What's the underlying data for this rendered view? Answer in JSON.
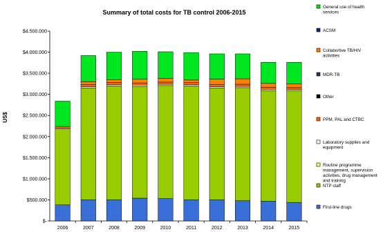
{
  "chart_data": {
    "type": "bar",
    "stacked": true,
    "title": "Summary of total costs for TB control 2006-2015",
    "ylabel": "US$",
    "xlabel": "",
    "ylim": [
      0,
      4500000
    ],
    "yticks": [
      0,
      500000,
      1000000,
      1500000,
      2000000,
      2500000,
      3000000,
      3500000,
      4000000,
      4500000
    ],
    "ytick_labels": [
      "$-",
      "$500.000",
      "$1.000.000",
      "$1.500.000",
      "$2.000.000",
      "$2.500.000",
      "$3.000.000",
      "$3.500.000",
      "$4.000.000",
      "$4.500.000"
    ],
    "categories": [
      "2006",
      "2007",
      "2008",
      "2009",
      "2010",
      "2011",
      "2012",
      "2013",
      "2014",
      "2015"
    ],
    "grid": false,
    "legend_position": "right",
    "series": [
      {
        "name": "First-line drugs",
        "color": "#3a6fd8",
        "values": [
          380000,
          500000,
          500000,
          540000,
          530000,
          500000,
          500000,
          480000,
          470000,
          440000
        ]
      },
      {
        "name": "NTP staff",
        "color": "#99cc00",
        "values": [
          1800000,
          2650000,
          2700000,
          2650000,
          2680000,
          2700000,
          2650000,
          2680000,
          2620000,
          2640000
        ]
      },
      {
        "name": "Routine programme management, supervision activities, drug management and training",
        "color": "#ffff66",
        "values": [
          0,
          0,
          0,
          0,
          0,
          0,
          0,
          0,
          0,
          0
        ]
      },
      {
        "name": "Laboratory supplies and equipment",
        "color": "#ffffff",
        "values": [
          20000,
          30000,
          30000,
          30000,
          30000,
          30000,
          30000,
          30000,
          30000,
          30000
        ]
      },
      {
        "name": "PPM, PAL and CTBC",
        "color": "#ff6600",
        "values": [
          0,
          50000,
          50000,
          50000,
          50000,
          50000,
          50000,
          50000,
          50000,
          50000
        ]
      },
      {
        "name": "Other",
        "color": "#000000",
        "values": [
          0,
          0,
          0,
          0,
          0,
          0,
          0,
          0,
          0,
          0
        ]
      },
      {
        "name": "MDR-TB",
        "color": "#333366",
        "values": [
          0,
          0,
          0,
          0,
          0,
          0,
          0,
          0,
          0,
          0
        ]
      },
      {
        "name": "Collabortive TB/HIV activities",
        "color": "#ff7f00",
        "values": [
          40000,
          70000,
          70000,
          90000,
          90000,
          60000,
          130000,
          130000,
          90000,
          90000
        ]
      },
      {
        "name": "ACSM",
        "color": "#0a2b8c",
        "values": [
          0,
          0,
          0,
          0,
          0,
          0,
          0,
          0,
          0,
          0
        ]
      },
      {
        "name": "General use of health services",
        "color": "#00e620",
        "values": [
          600000,
          620000,
          650000,
          660000,
          630000,
          650000,
          600000,
          590000,
          500000,
          510000
        ]
      }
    ]
  }
}
